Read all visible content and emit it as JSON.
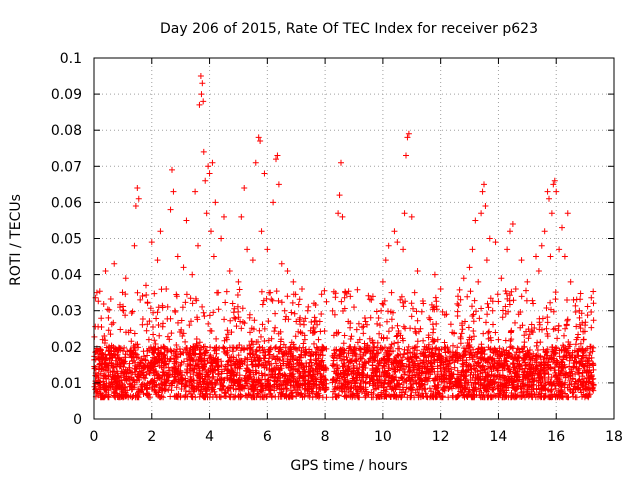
{
  "chart_data": {
    "type": "scatter",
    "title": "Day 206 of 2015, Rate Of TEC Index for receiver p623",
    "xlabel": "GPS time / hours",
    "ylabel": "ROTI / TECUs",
    "xlim": [
      0,
      18
    ],
    "ylim": [
      0,
      0.1
    ],
    "xticks": [
      0,
      2,
      4,
      6,
      8,
      10,
      12,
      14,
      16,
      18
    ],
    "xtick_labels": [
      "0",
      "2",
      "4",
      "6",
      "8",
      "10",
      "12",
      "14",
      "16",
      "18"
    ],
    "yticks": [
      0,
      0.01,
      0.02,
      0.03,
      0.04,
      0.05,
      0.06,
      0.07,
      0.08,
      0.09,
      0.1
    ],
    "ytick_labels": [
      "0",
      "0.01",
      "0.02",
      "0.03",
      "0.04",
      "0.05",
      "0.06",
      "0.07",
      "0.08",
      "0.09",
      "0.1"
    ],
    "grid": true,
    "marker": "+",
    "color": "#ff0000",
    "series": [
      {
        "name": "ROTI",
        "points": [
          [
            0.05,
            0.012
          ],
          [
            0.1,
            0.035
          ],
          [
            0.15,
            0.01
          ],
          [
            0.2,
            0.018
          ],
          [
            0.3,
            0.022
          ],
          [
            0.4,
            0.041
          ],
          [
            0.45,
            0.015
          ],
          [
            0.5,
            0.028
          ],
          [
            0.6,
            0.011
          ],
          [
            0.7,
            0.043
          ],
          [
            0.8,
            0.019
          ],
          [
            0.9,
            0.031
          ],
          [
            1.0,
            0.013
          ],
          [
            1.1,
            0.039
          ],
          [
            1.2,
            0.024
          ],
          [
            1.3,
            0.017
          ],
          [
            1.4,
            0.048
          ],
          [
            1.45,
            0.059
          ],
          [
            1.5,
            0.064
          ],
          [
            1.55,
            0.061
          ],
          [
            1.6,
            0.033
          ],
          [
            1.7,
            0.014
          ],
          [
            1.8,
            0.037
          ],
          [
            1.9,
            0.022
          ],
          [
            2.0,
            0.049
          ],
          [
            2.1,
            0.012
          ],
          [
            2.2,
            0.044
          ],
          [
            2.3,
            0.052
          ],
          [
            2.4,
            0.02
          ],
          [
            2.5,
            0.036
          ],
          [
            2.6,
            0.016
          ],
          [
            2.65,
            0.058
          ],
          [
            2.7,
            0.069
          ],
          [
            2.75,
            0.063
          ],
          [
            2.8,
            0.03
          ],
          [
            2.9,
            0.045
          ],
          [
            3.0,
            0.013
          ],
          [
            3.1,
            0.042
          ],
          [
            3.2,
            0.055
          ],
          [
            3.3,
            0.026
          ],
          [
            3.4,
            0.04
          ],
          [
            3.5,
            0.063
          ],
          [
            3.6,
            0.048
          ],
          [
            3.65,
            0.087
          ],
          [
            3.7,
            0.095
          ],
          [
            3.72,
            0.09
          ],
          [
            3.75,
            0.093
          ],
          [
            3.78,
            0.088
          ],
          [
            3.8,
            0.074
          ],
          [
            3.85,
            0.066
          ],
          [
            3.9,
            0.057
          ],
          [
            3.95,
            0.07
          ],
          [
            4.0,
            0.068
          ],
          [
            4.05,
            0.052
          ],
          [
            4.1,
            0.071
          ],
          [
            4.15,
            0.045
          ],
          [
            4.2,
            0.06
          ],
          [
            4.3,
            0.035
          ],
          [
            4.4,
            0.05
          ],
          [
            4.5,
            0.056
          ],
          [
            4.6,
            0.022
          ],
          [
            4.7,
            0.041
          ],
          [
            4.8,
            0.032
          ],
          [
            4.9,
            0.015
          ],
          [
            5.0,
            0.038
          ],
          [
            5.1,
            0.056
          ],
          [
            5.2,
            0.064
          ],
          [
            5.3,
            0.047
          ],
          [
            5.4,
            0.024
          ],
          [
            5.5,
            0.044
          ],
          [
            5.6,
            0.071
          ],
          [
            5.7,
            0.078
          ],
          [
            5.75,
            0.077
          ],
          [
            5.8,
            0.052
          ],
          [
            5.9,
            0.068
          ],
          [
            6.0,
            0.047
          ],
          [
            6.1,
            0.035
          ],
          [
            6.2,
            0.06
          ],
          [
            6.3,
            0.072
          ],
          [
            6.35,
            0.073
          ],
          [
            6.4,
            0.065
          ],
          [
            6.5,
            0.043
          ],
          [
            6.6,
            0.03
          ],
          [
            6.7,
            0.041
          ],
          [
            6.8,
            0.02
          ],
          [
            6.9,
            0.038
          ],
          [
            7.0,
            0.027
          ],
          [
            7.1,
            0.015
          ],
          [
            7.2,
            0.036
          ],
          [
            7.3,
            0.022
          ],
          [
            7.4,
            0.03
          ],
          [
            7.5,
            0.012
          ],
          [
            7.6,
            0.025
          ],
          [
            7.7,
            0.018
          ],
          [
            7.8,
            0.014
          ],
          [
            7.9,
            0.02
          ],
          [
            8.0,
            0.011
          ],
          [
            8.3,
            0.017
          ],
          [
            8.4,
            0.024
          ],
          [
            8.45,
            0.057
          ],
          [
            8.5,
            0.062
          ],
          [
            8.55,
            0.071
          ],
          [
            8.6,
            0.056
          ],
          [
            8.7,
            0.035
          ],
          [
            8.8,
            0.027
          ],
          [
            8.9,
            0.019
          ],
          [
            9.0,
            0.031
          ],
          [
            9.1,
            0.014
          ],
          [
            9.2,
            0.022
          ],
          [
            9.3,
            0.012
          ],
          [
            9.4,
            0.027
          ],
          [
            9.5,
            0.016
          ],
          [
            9.6,
            0.033
          ],
          [
            9.7,
            0.02
          ],
          [
            9.8,
            0.012
          ],
          [
            9.9,
            0.026
          ],
          [
            10.0,
            0.038
          ],
          [
            10.1,
            0.044
          ],
          [
            10.2,
            0.048
          ],
          [
            10.3,
            0.035
          ],
          [
            10.4,
            0.052
          ],
          [
            10.5,
            0.049
          ],
          [
            10.6,
            0.033
          ],
          [
            10.7,
            0.047
          ],
          [
            10.75,
            0.057
          ],
          [
            10.8,
            0.073
          ],
          [
            10.85,
            0.078
          ],
          [
            10.9,
            0.079
          ],
          [
            11.0,
            0.056
          ],
          [
            11.1,
            0.035
          ],
          [
            11.2,
            0.041
          ],
          [
            11.3,
            0.025
          ],
          [
            11.4,
            0.032
          ],
          [
            11.5,
            0.017
          ],
          [
            11.6,
            0.028
          ],
          [
            11.7,
            0.013
          ],
          [
            11.8,
            0.04
          ],
          [
            11.9,
            0.022
          ],
          [
            12.0,
            0.036
          ],
          [
            12.1,
            0.015
          ],
          [
            12.2,
            0.029
          ],
          [
            12.3,
            0.011
          ],
          [
            12.4,
            0.024
          ],
          [
            12.5,
            0.018
          ],
          [
            12.6,
            0.034
          ],
          [
            12.7,
            0.021
          ],
          [
            12.8,
            0.039
          ],
          [
            12.9,
            0.015
          ],
          [
            13.0,
            0.042
          ],
          [
            13.1,
            0.047
          ],
          [
            13.2,
            0.055
          ],
          [
            13.3,
            0.038
          ],
          [
            13.4,
            0.057
          ],
          [
            13.45,
            0.063
          ],
          [
            13.5,
            0.065
          ],
          [
            13.55,
            0.059
          ],
          [
            13.6,
            0.044
          ],
          [
            13.7,
            0.05
          ],
          [
            13.8,
            0.03
          ],
          [
            13.9,
            0.049
          ],
          [
            14.0,
            0.022
          ],
          [
            14.1,
            0.039
          ],
          [
            14.2,
            0.018
          ],
          [
            14.3,
            0.047
          ],
          [
            14.4,
            0.052
          ],
          [
            14.5,
            0.054
          ],
          [
            14.6,
            0.036
          ],
          [
            14.7,
            0.029
          ],
          [
            14.8,
            0.044
          ],
          [
            14.9,
            0.02
          ],
          [
            15.0,
            0.038
          ],
          [
            15.1,
            0.015
          ],
          [
            15.2,
            0.032
          ],
          [
            15.3,
            0.045
          ],
          [
            15.4,
            0.041
          ],
          [
            15.5,
            0.048
          ],
          [
            15.6,
            0.052
          ],
          [
            15.7,
            0.063
          ],
          [
            15.75,
            0.061
          ],
          [
            15.8,
            0.045
          ],
          [
            15.85,
            0.057
          ],
          [
            15.9,
            0.065
          ],
          [
            15.95,
            0.066
          ],
          [
            16.0,
            0.063
          ],
          [
            16.1,
            0.047
          ],
          [
            16.2,
            0.053
          ],
          [
            16.3,
            0.045
          ],
          [
            16.4,
            0.057
          ],
          [
            16.5,
            0.038
          ],
          [
            16.6,
            0.033
          ],
          [
            16.7,
            0.022
          ],
          [
            16.8,
            0.03
          ],
          [
            16.9,
            0.016
          ],
          [
            17.0,
            0.026
          ],
          [
            17.1,
            0.013
          ],
          [
            17.2,
            0.02
          ],
          [
            17.25,
            0.011
          ]
        ]
      }
    ]
  }
}
